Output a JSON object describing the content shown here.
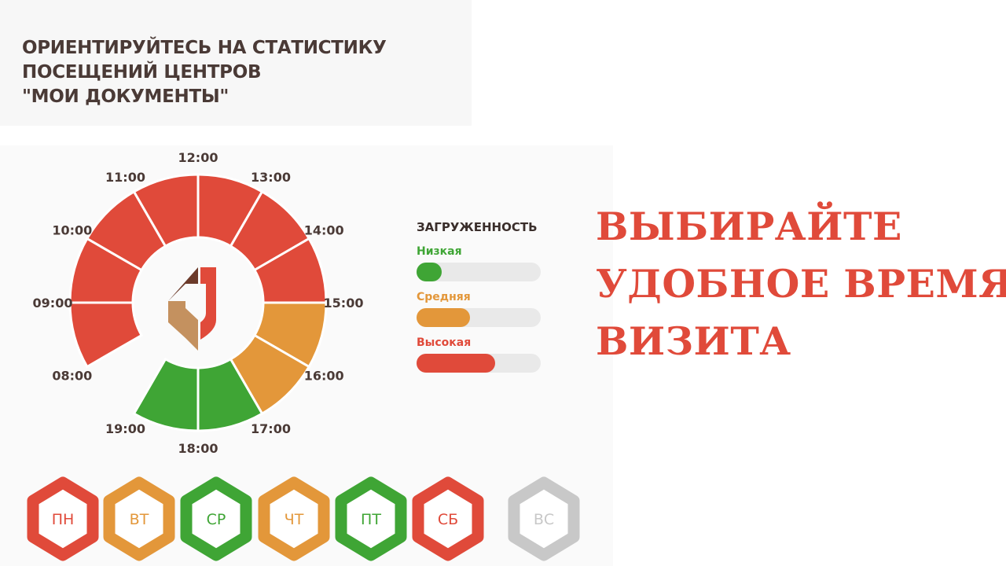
{
  "header": {
    "title_lines": [
      "ОРИЕНТИРУЙТЕСЬ НА СТАТИСТИКУ",
      "ПОСЕЩЕНИЙ ЦЕНТРОВ",
      "\"МОИ ДОКУМЕНТЫ\""
    ]
  },
  "headline": {
    "lines": [
      "ВЫБИРАЙТЕ",
      "УДОБНОЕ ВРЕМЯ",
      "ВИЗИТА"
    ]
  },
  "colors": {
    "low": "#3fa535",
    "medium": "#e3973a",
    "high": "#e04a3a",
    "closed": "#c8c8c8",
    "text": "#4a3a36"
  },
  "legend": {
    "title": "ЗАГРУЖЕННОСТЬ",
    "items": [
      {
        "label": "Низкая",
        "level": "low",
        "fill_percent": 20
      },
      {
        "label": "Средняя",
        "level": "medium",
        "fill_percent": 43
      },
      {
        "label": "Высокая",
        "level": "high",
        "fill_percent": 63
      }
    ]
  },
  "chart_data": {
    "type": "radial-bar",
    "hour_labels": [
      "08:00",
      "09:00",
      "10:00",
      "11:00",
      "12:00",
      "13:00",
      "14:00",
      "15:00",
      "16:00",
      "17:00",
      "18:00",
      "19:00"
    ],
    "segments": [
      {
        "from": 8,
        "to": 9,
        "level": "high"
      },
      {
        "from": 9,
        "to": 10,
        "level": "high"
      },
      {
        "from": 10,
        "to": 11,
        "level": "high"
      },
      {
        "from": 11,
        "to": 12,
        "level": "high"
      },
      {
        "from": 12,
        "to": 13,
        "level": "high"
      },
      {
        "from": 13,
        "to": 14,
        "level": "high"
      },
      {
        "from": 14,
        "to": 15,
        "level": "high"
      },
      {
        "from": 15,
        "to": 16,
        "level": "medium"
      },
      {
        "from": 16,
        "to": 17,
        "level": "medium"
      },
      {
        "from": 17,
        "to": 18,
        "level": "low"
      },
      {
        "from": 18,
        "to": 19,
        "level": "low"
      }
    ]
  },
  "days": [
    {
      "label": "ПН",
      "level": "high"
    },
    {
      "label": "ВТ",
      "level": "medium"
    },
    {
      "label": "СР",
      "level": "low"
    },
    {
      "label": "ЧТ",
      "level": "medium"
    },
    {
      "label": "ПТ",
      "level": "low"
    },
    {
      "label": "СБ",
      "level": "high"
    },
    {
      "label": "ВС",
      "level": "closed"
    }
  ]
}
